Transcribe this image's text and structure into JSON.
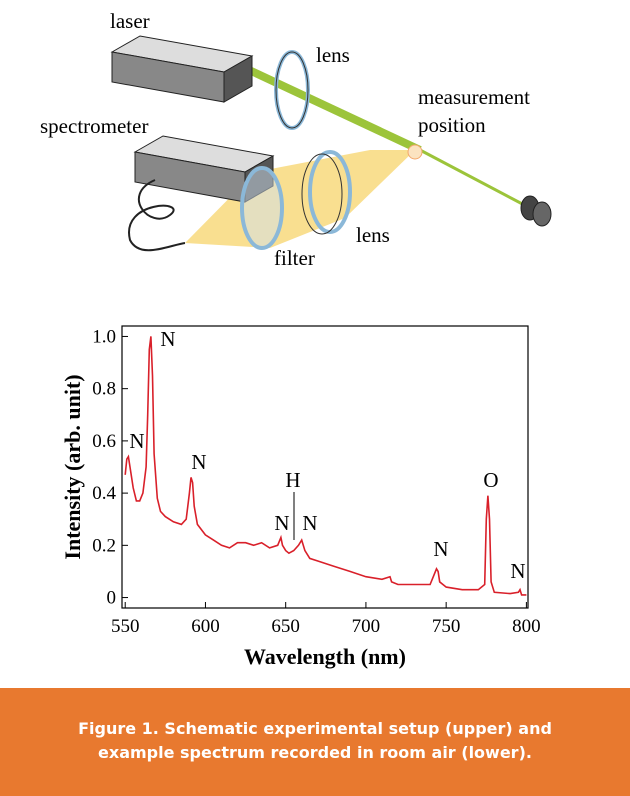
{
  "diagram": {
    "labels": [
      "laser",
      "lens",
      "measurement",
      "position",
      "spectrometer",
      "lens",
      "filter"
    ]
  },
  "chart_data": {
    "type": "line",
    "xlabel": "Wavelength (nm)",
    "ylabel": "Intensity (arb. unit)",
    "x": [
      550,
      551,
      552,
      553,
      555,
      557,
      559,
      561,
      563,
      564,
      565,
      566,
      567,
      568,
      570,
      572,
      575,
      580,
      585,
      588,
      590,
      591,
      592,
      593,
      595,
      600,
      605,
      610,
      615,
      620,
      625,
      630,
      635,
      640,
      645,
      647,
      648,
      650,
      652,
      655,
      658,
      660,
      662,
      665,
      670,
      680,
      690,
      700,
      710,
      715,
      716,
      720,
      730,
      740,
      742,
      744,
      745,
      746,
      750,
      760,
      770,
      774,
      775,
      776,
      777,
      778,
      780,
      790,
      795,
      796,
      797,
      800
    ],
    "series": [
      {
        "name": "spectrum",
        "color": "#d9202a",
        "values": [
          0.47,
          0.53,
          0.54,
          0.5,
          0.42,
          0.37,
          0.37,
          0.4,
          0.5,
          0.7,
          0.95,
          1.0,
          0.85,
          0.55,
          0.38,
          0.33,
          0.31,
          0.29,
          0.28,
          0.3,
          0.4,
          0.46,
          0.44,
          0.35,
          0.28,
          0.24,
          0.22,
          0.2,
          0.19,
          0.21,
          0.21,
          0.2,
          0.21,
          0.19,
          0.2,
          0.23,
          0.2,
          0.18,
          0.17,
          0.18,
          0.2,
          0.22,
          0.18,
          0.15,
          0.14,
          0.12,
          0.1,
          0.08,
          0.07,
          0.08,
          0.06,
          0.05,
          0.05,
          0.05,
          0.08,
          0.11,
          0.1,
          0.06,
          0.04,
          0.03,
          0.03,
          0.05,
          0.3,
          0.39,
          0.3,
          0.06,
          0.02,
          0.015,
          0.02,
          0.03,
          0.01,
          0.01
        ]
      }
    ],
    "xlim": [
      548,
      801
    ],
    "ylim": [
      -0.04,
      1.04
    ],
    "xticks": [
      550,
      600,
      650,
      700,
      750,
      800
    ],
    "yticks": [
      0,
      0.2,
      0.4,
      0.6,
      0.8,
      {
        "value": 1,
        "label": "1.0"
      }
    ],
    "annotations": [
      "N",
      "N",
      "N",
      "H",
      "N",
      "N",
      "N",
      "O",
      "N"
    ]
  },
  "caption": "Figure 1. Schematic experimental setup (upper) and example spectrum recorded in room air (lower)."
}
